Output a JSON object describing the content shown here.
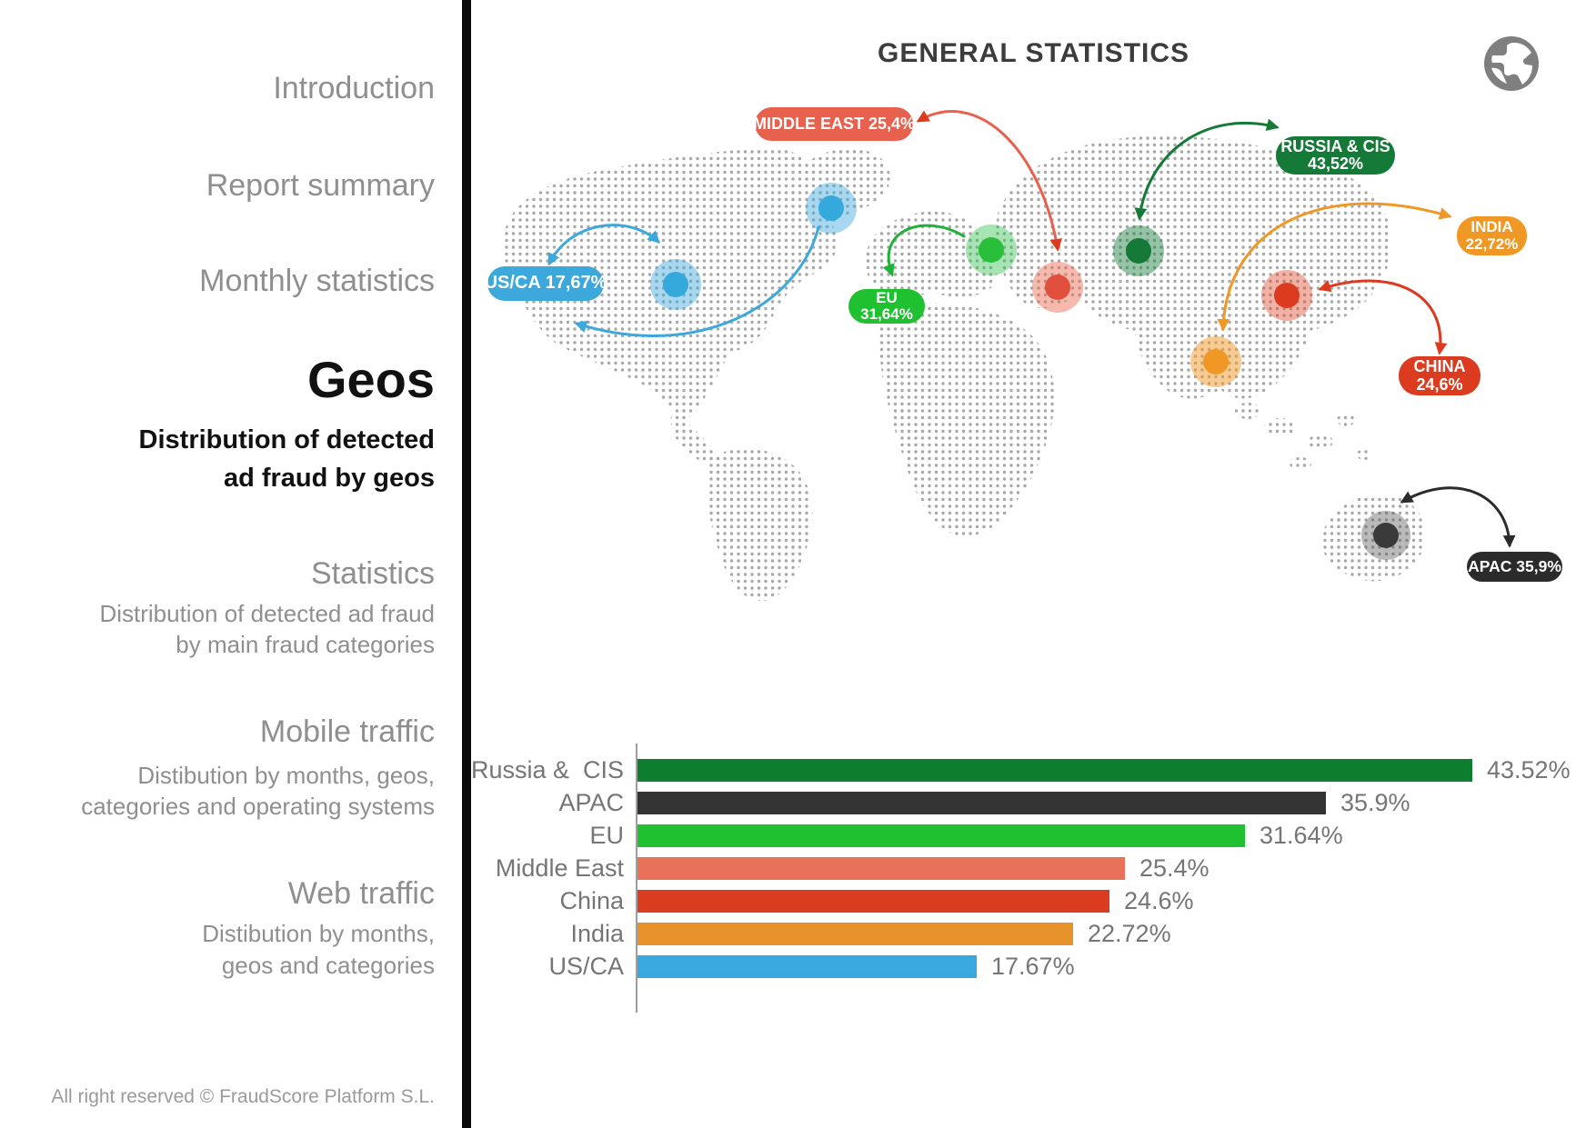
{
  "sidebar": {
    "nav": [
      {
        "label": "Introduction"
      },
      {
        "label": "Report summary"
      },
      {
        "label": "Monthly statistics"
      }
    ],
    "geos": {
      "title": "Geos",
      "subtitle_line1": "Distribution of detected",
      "subtitle_line2": "ad fraud by geos"
    },
    "sections": [
      {
        "title": "Statistics",
        "desc_line1": "Distribution of detected ad fraud",
        "desc_line2": "by main fraud categories"
      },
      {
        "title": "Mobile traffic",
        "desc_line1": "Distibution by months, geos,",
        "desc_line2": "categories and operating systems"
      },
      {
        "title": "Web traffic",
        "desc_line1": "Distibution by months,",
        "desc_line2": "geos and categories"
      }
    ],
    "footer": "All right reserved © FraudScore Platform S.L."
  },
  "header": {
    "title": "GENERAL STATISTICS",
    "globe_icon": "globe-icon",
    "globe_color": "#7f7f7f"
  },
  "map": {
    "dot_color": "#a8a8a8",
    "callouts": [
      {
        "id": "us_ca",
        "lines": [
          "US/CA 17,67%"
        ],
        "color": "#3DA8DC"
      },
      {
        "id": "middle_east",
        "lines": [
          "MIDDLE EAST 25,4%"
        ],
        "color": "#E8614E"
      },
      {
        "id": "eu",
        "lines": [
          "EU",
          "31,64%"
        ],
        "color": "#1FC130"
      },
      {
        "id": "russia_cis",
        "lines": [
          "RUSSIA & CIS",
          "43,52%"
        ],
        "color": "#157A38"
      },
      {
        "id": "india",
        "lines": [
          "INDIA",
          "22,72%"
        ],
        "color": "#EF9826"
      },
      {
        "id": "china",
        "lines": [
          "CHINA",
          "24,6%"
        ],
        "color": "#DB3B1E"
      },
      {
        "id": "apac",
        "lines": [
          "APAC 35,9%"
        ],
        "color": "#2B2B2B"
      }
    ]
  },
  "chart_data": {
    "type": "bar",
    "orientation": "horizontal",
    "title": "GENERAL STATISTICS",
    "categories": [
      "Russia &  CIS",
      "APAC",
      "EU",
      "Middle East",
      "China",
      "India",
      "US/CA"
    ],
    "values": [
      43.52,
      35.9,
      31.64,
      25.4,
      24.6,
      22.72,
      17.67
    ],
    "value_labels": [
      "43.52%",
      "35.9%",
      "31.64%",
      "25.4%",
      "24.6%",
      "22.72%",
      "17.67%"
    ],
    "colors": [
      "#0E7D2D",
      "#333333",
      "#1FC130",
      "#E77258",
      "#D93C1E",
      "#E8922C",
      "#38A8DE"
    ],
    "xlabel": "",
    "ylabel": "",
    "xlim": [
      0,
      50
    ],
    "grid": false,
    "legend": false
  }
}
